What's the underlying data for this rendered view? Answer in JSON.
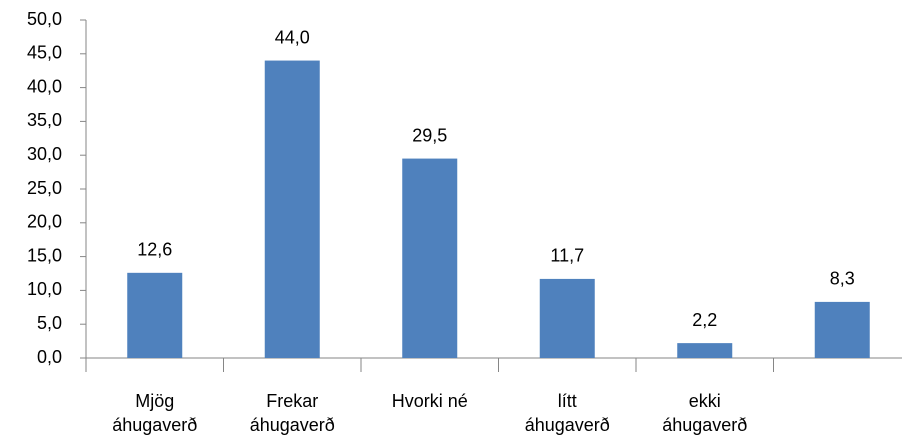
{
  "chart_data": {
    "type": "bar",
    "categories": [
      "Mjög\náhugaverð",
      "Frekar\náhugaverð",
      "Hvorki né",
      "lítt\náhugaverð",
      "ekki\náhugaverð",
      null
    ],
    "values": [
      12.6,
      44.0,
      29.5,
      11.7,
      2.2,
      8.3
    ],
    "value_labels": [
      "12,6",
      "44,0",
      "29,5",
      "11,7",
      "2,2",
      "8,3"
    ],
    "color": "#4f81bd",
    "ylim": [
      0,
      50
    ],
    "yticks": [
      {
        "value": 0,
        "label": "0,0"
      },
      {
        "value": 5,
        "label": "5,0"
      },
      {
        "value": 10,
        "label": "10,0"
      },
      {
        "value": 15,
        "label": "15,0"
      },
      {
        "value": 20,
        "label": "20,0"
      },
      {
        "value": 25,
        "label": "25,0"
      },
      {
        "value": 30,
        "label": "30,0"
      },
      {
        "value": 35,
        "label": "35,0"
      },
      {
        "value": 40,
        "label": "40,0"
      },
      {
        "value": 45,
        "label": "45,0"
      },
      {
        "value": 50,
        "label": "50,0"
      }
    ]
  }
}
